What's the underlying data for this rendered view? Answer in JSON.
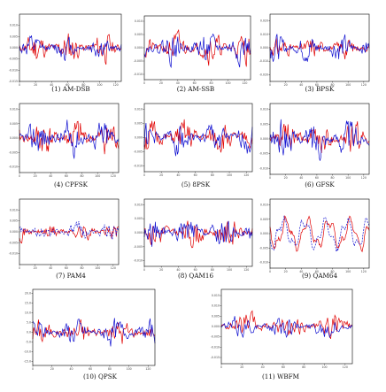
{
  "colors": {
    "real": "#e00000",
    "imag": "#1010d0",
    "axis": "#000000"
  },
  "chart_data": [
    {
      "type": "line",
      "caption": "(1) AM-DSB",
      "x": {
        "start": 0,
        "step": 1,
        "count": 128
      },
      "xticks": [
        "0",
        "20",
        "40",
        "60",
        "80",
        "100",
        "120"
      ],
      "yticks": [
        "0.010",
        "0.005",
        "0.000",
        "-0.005",
        "-0.010",
        "-0.015"
      ],
      "ylim": [
        -0.015,
        0.015
      ],
      "series": [
        {
          "color": "#e00000",
          "amplitude": 0.011,
          "seed": 11
        },
        {
          "color": "#1010d0",
          "amplitude": 0.008,
          "seed": 12
        }
      ]
    },
    {
      "type": "line",
      "caption": "(2) AM-SSB",
      "x": {
        "start": 0,
        "step": 1,
        "count": 128
      },
      "xticks": [
        "0",
        "20",
        "40",
        "60",
        "80",
        "100",
        "120"
      ],
      "yticks": [
        "0.010",
        "0.005",
        "0.000",
        "-0.005",
        "-0.010"
      ],
      "ylim": [
        -0.012,
        0.012
      ],
      "series": [
        {
          "color": "#e00000",
          "amplitude": 0.009,
          "seed": 21
        },
        {
          "color": "#1010d0",
          "amplitude": 0.009,
          "seed": 22
        }
      ]
    },
    {
      "type": "line",
      "caption": "(3) BPSK",
      "x": {
        "start": 0,
        "step": 1,
        "count": 128
      },
      "xticks": [
        "0",
        "20",
        "40",
        "60",
        "80",
        "100",
        "120"
      ],
      "yticks": [
        "0.020",
        "0.010",
        "0.000",
        "-0.010",
        "-0.020"
      ],
      "ylim": [
        -0.025,
        0.025
      ],
      "series": [
        {
          "color": "#e00000",
          "amplitude": 0.012,
          "seed": 31
        },
        {
          "color": "#1010d0",
          "amplitude": 0.016,
          "seed": 32
        }
      ]
    },
    {
      "type": "line",
      "caption": "(4) CPFSK",
      "x": {
        "start": 0,
        "step": 1,
        "count": 128
      },
      "xticks": [
        "0",
        "20",
        "40",
        "60",
        "80",
        "100",
        "120"
      ],
      "yticks": [
        "0.010",
        "0.005",
        "0.000",
        "-0.005",
        "-0.010"
      ],
      "ylim": [
        -0.012,
        0.012
      ],
      "series": [
        {
          "color": "#e00000",
          "amplitude": 0.01,
          "seed": 41
        },
        {
          "color": "#1010d0",
          "amplitude": 0.01,
          "seed": 42
        }
      ]
    },
    {
      "type": "line",
      "caption": "(5) 8PSK",
      "x": {
        "start": 0,
        "step": 1,
        "count": 128
      },
      "xticks": [
        "0",
        "20",
        "40",
        "60",
        "80",
        "100",
        "120"
      ],
      "yticks": [
        "0.010",
        "0.005",
        "0.000",
        "-0.005",
        "-0.010"
      ],
      "ylim": [
        -0.012,
        0.012
      ],
      "series": [
        {
          "color": "#e00000",
          "amplitude": 0.009,
          "seed": 51
        },
        {
          "color": "#1010d0",
          "amplitude": 0.009,
          "seed": 52
        }
      ]
    },
    {
      "type": "line",
      "caption": "(6) GFSK",
      "x": {
        "start": 0,
        "step": 1,
        "count": 128
      },
      "xticks": [
        "0",
        "20",
        "40",
        "60",
        "80",
        "100",
        "120"
      ],
      "yticks": [
        "0.010",
        "0.005",
        "0.000",
        "-0.005",
        "-0.010"
      ],
      "ylim": [
        -0.012,
        0.012
      ],
      "series": [
        {
          "color": "#e00000",
          "amplitude": 0.009,
          "seed": 61
        },
        {
          "color": "#1010d0",
          "amplitude": 0.01,
          "seed": 62
        }
      ]
    },
    {
      "type": "line",
      "caption": "(7) PAM4",
      "x": {
        "start": 0,
        "step": 1,
        "count": 128
      },
      "xticks": [
        "0",
        "20",
        "40",
        "60",
        "80",
        "100",
        "120"
      ],
      "yticks": [
        "0.010",
        "0.005",
        "0.000",
        "-0.005",
        "-0.010"
      ],
      "ylim": [
        -0.015,
        0.015
      ],
      "series": [
        {
          "color": "#e00000",
          "amplitude": 0.006,
          "seed": 71
        },
        {
          "color": "#1010d0",
          "amplitude": 0.006,
          "seed": 72,
          "dashed": true
        }
      ]
    },
    {
      "type": "line",
      "caption": "(8) QAM16",
      "x": {
        "start": 0,
        "step": 1,
        "count": 128
      },
      "xticks": [
        "0",
        "20",
        "40",
        "60",
        "80",
        "100",
        "120"
      ],
      "yticks": [
        "0.010",
        "0.005",
        "0.000",
        "-0.005",
        "-0.010"
      ],
      "ylim": [
        -0.012,
        0.012
      ],
      "series": [
        {
          "color": "#e00000",
          "amplitude": 0.008,
          "seed": 81
        },
        {
          "color": "#1010d0",
          "amplitude": 0.008,
          "seed": 82
        }
      ]
    },
    {
      "type": "line",
      "caption": "(9) QAM64",
      "x": {
        "start": 0,
        "step": 1,
        "count": 128
      },
      "xticks": [
        "0",
        "20",
        "40",
        "60",
        "80",
        "100",
        "120"
      ],
      "yticks": [
        "0.010",
        "0.005",
        "0.000",
        "-0.005",
        "-0.010"
      ],
      "ylim": [
        -0.012,
        0.012
      ],
      "series": [
        {
          "color": "#e00000",
          "amplitude": 0.006,
          "seed": 91,
          "smooth": true
        },
        {
          "color": "#1010d0",
          "amplitude": 0.006,
          "seed": 92,
          "smooth": true,
          "dashed": true
        }
      ]
    },
    {
      "type": "line",
      "caption": "(10) QPSK",
      "x": {
        "start": 0,
        "step": 1,
        "count": 128
      },
      "xticks": [
        "0",
        "20",
        "40",
        "60",
        "80",
        "100",
        "120"
      ],
      "yticks": [
        "20.0",
        "15.0",
        "10.0",
        "5.0",
        "0.0",
        "-5.0",
        "-10.0",
        "-15.0"
      ],
      "ylim": [
        -17,
        22
      ],
      "series": [
        {
          "color": "#e00000",
          "amplitude": 11.0,
          "seed": 101
        },
        {
          "color": "#1010d0",
          "amplitude": 11.0,
          "seed": 102
        }
      ]
    },
    {
      "type": "line",
      "caption": "(11) WBFM",
      "x": {
        "start": 0,
        "step": 1,
        "count": 128
      },
      "xticks": [
        "0",
        "20",
        "40",
        "60",
        "80",
        "100",
        "120"
      ],
      "yticks": [
        "0.015",
        "0.010",
        "0.005",
        "0.000",
        "-0.005",
        "-0.010",
        "-0.015"
      ],
      "ylim": [
        -0.018,
        0.018
      ],
      "series": [
        {
          "color": "#e00000",
          "amplitude": 0.01,
          "seed": 111
        },
        {
          "color": "#1010d0",
          "amplitude": 0.008,
          "seed": 112
        }
      ]
    }
  ]
}
